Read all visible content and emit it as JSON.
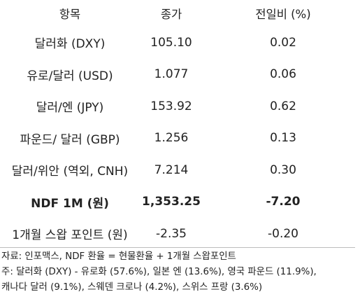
{
  "table": {
    "headers": [
      "항목",
      "종가",
      "전일비 (%)"
    ],
    "rows": [
      {
        "item": "달러화 (DXY)",
        "close": "105.10",
        "change": "0.02",
        "bold": false
      },
      {
        "item": "유로/달러 (USD)",
        "close": "1.077",
        "change": "0.06",
        "bold": false
      },
      {
        "item": "달러/엔 (JPY)",
        "close": "153.92",
        "change": "0.62",
        "bold": false
      },
      {
        "item": "파운드/ 달러 (GBP)",
        "close": "1.256",
        "change": "0.13",
        "bold": false
      },
      {
        "item": "달러/위안 (역외, CNH)",
        "close": "7.214",
        "change": "0.30",
        "bold": false
      },
      {
        "item": "NDF 1M (원)",
        "close": "1,353.25",
        "change": "-7.20",
        "bold": true
      },
      {
        "item": "1개월 스왑 포인트 (원)",
        "close": "-2.35",
        "change": "-0.20",
        "bold": false
      }
    ]
  },
  "notes": {
    "source": "자료: 인포맥스, NDF 환율 = 현물환율 + 1개월 스왑포인트",
    "note_line1": "주: 달러화 (DXY) - 유로화 (57.6%), 일본 엔 (13.6%), 영국 파운드 (11.9%),",
    "note_line2": "캐나다 달러 (9.1%), 스웨덴 크로나 (4.2%), 스위스 프랑 (3.6%)"
  }
}
